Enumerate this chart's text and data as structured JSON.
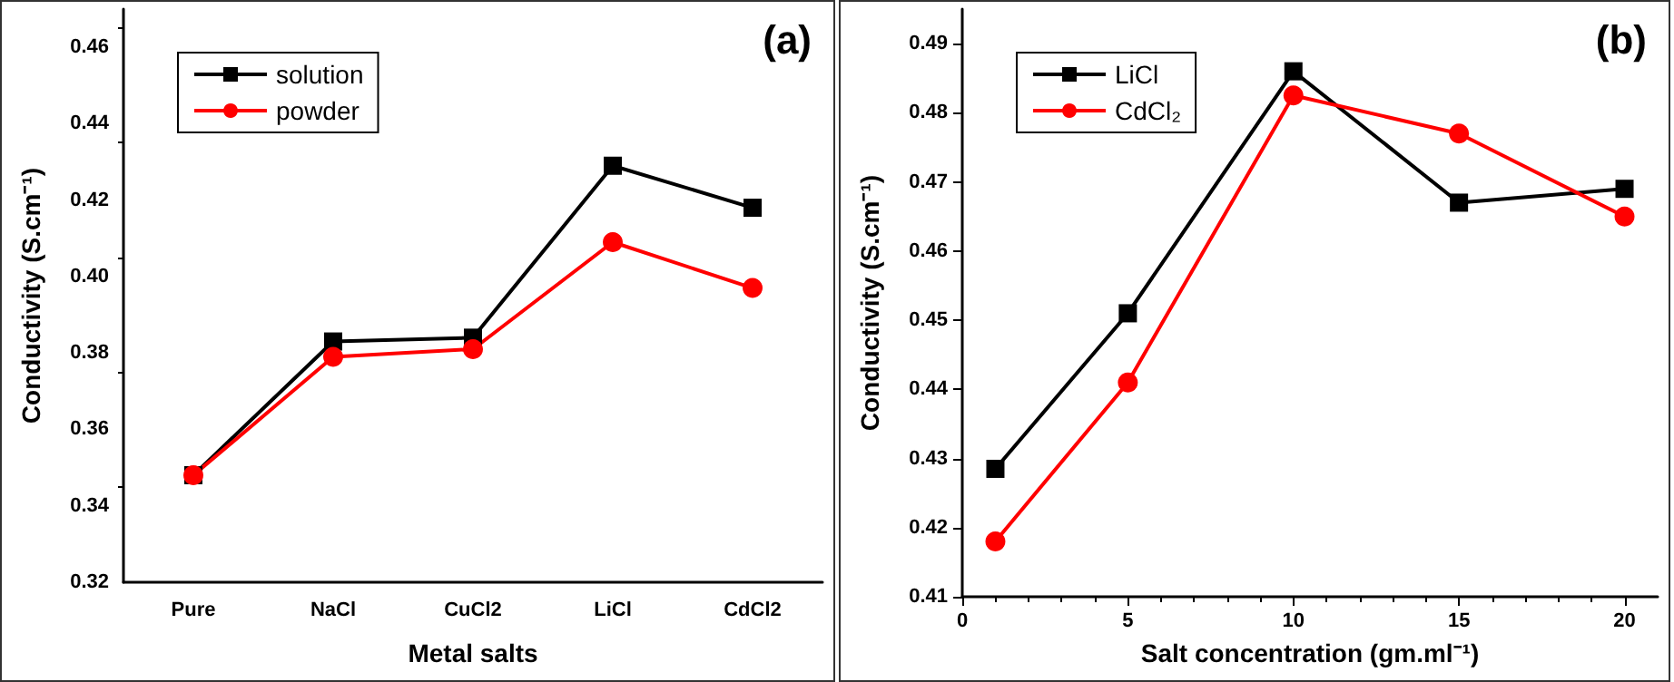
{
  "chart_data": [
    {
      "type": "line",
      "annotations": [
        "(a)"
      ],
      "xlabel": "Metal salts",
      "ylabel": "Conductivity (S.cm⁻¹)",
      "categories": [
        "Pure",
        "NaCl",
        "CuCl2",
        "LiCl",
        "CdCl2"
      ],
      "series": [
        {
          "name": "solution",
          "color": "#000000",
          "marker": "square",
          "values": [
            0.348,
            0.383,
            0.384,
            0.429,
            0.418
          ]
        },
        {
          "name": "powder",
          "color": "#ff0000",
          "marker": "circle",
          "values": [
            0.348,
            0.379,
            0.381,
            0.409,
            0.397
          ]
        }
      ],
      "ylim": [
        0.32,
        0.47
      ],
      "yticks": [
        0.32,
        0.34,
        0.36,
        0.38,
        {
          "value": 0.4,
          "label": "0.40"
        },
        0.42,
        0.44,
        0.46
      ],
      "legend": "top left",
      "grid": false
    },
    {
      "type": "line",
      "annotations": [
        "(b)"
      ],
      "xlabel": "Salt concentration (gm.ml⁻¹)",
      "ylabel": "Conductivity (S.cm⁻¹)",
      "x": [
        1,
        5,
        10,
        15,
        20
      ],
      "series": [
        {
          "name": "LiCl",
          "color": "#000000",
          "marker": "square",
          "values": [
            0.4285,
            0.451,
            0.486,
            0.467,
            0.469
          ]
        },
        {
          "name": "CdCl₂",
          "color": "#ff0000",
          "marker": "circle",
          "values": [
            0.418,
            0.441,
            0.4825,
            0.477,
            0.465
          ]
        }
      ],
      "xlim": [
        0,
        21
      ],
      "xticks": [
        0,
        5,
        10,
        15,
        20
      ],
      "ylim": [
        0.41,
        0.495
      ],
      "yticks": [
        0.41,
        0.42,
        0.43,
        0.44,
        0.45,
        0.46,
        0.47,
        0.48,
        0.49
      ],
      "legend": "top left",
      "grid": false
    }
  ]
}
